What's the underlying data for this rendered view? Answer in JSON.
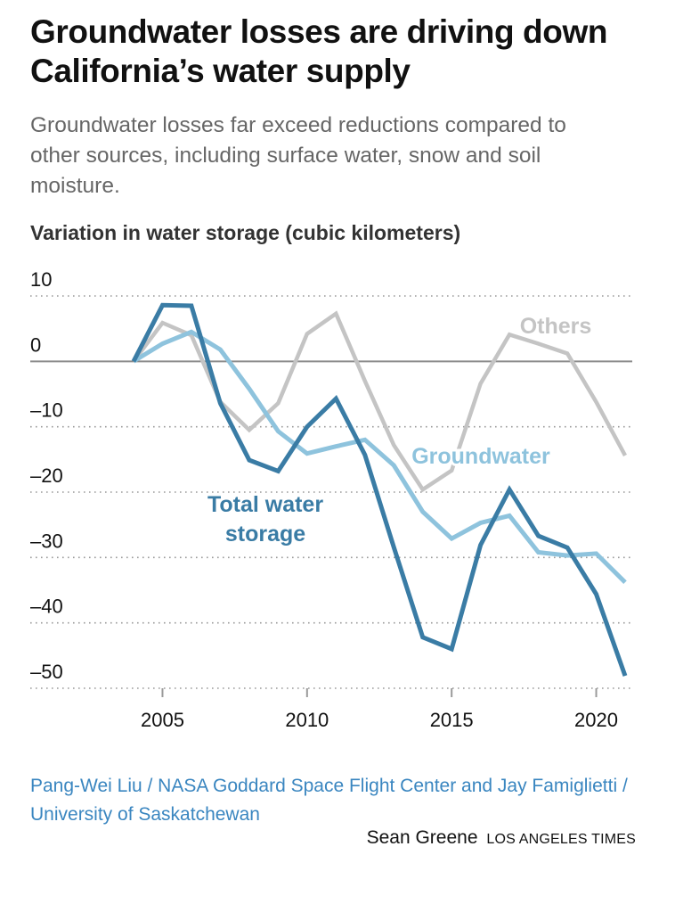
{
  "header": {
    "title": "Groundwater losses are driving down California’s water supply",
    "subtitle": "Groundwater losses far exceed reductions compared to other sources, including surface water, snow and soil moisture.",
    "axis_title": "Variation in water storage (cubic kilometers)"
  },
  "footer": {
    "source": "Pang-Wei Liu / NASA Goddard Space Flight Center and Jay Famiglietti / University of Saskatchewan",
    "author": "Sean Greene",
    "organization": "LOS ANGELES TIMES"
  },
  "colors": {
    "total": "#3a7ca5",
    "groundwater": "#8ec3dd",
    "others": "#c4c4c4",
    "zero_line": "#8c8c8c",
    "grid": "#9a9a9a"
  },
  "chart_data": {
    "type": "line",
    "title": "Variation in water storage (cubic kilometers)",
    "xlabel": "",
    "ylabel": "Variation in water storage (cubic kilometers)",
    "x": [
      2004,
      2005,
      2006,
      2007,
      2008,
      2009,
      2010,
      2011,
      2012,
      2013,
      2014,
      2015,
      2016,
      2017,
      2018,
      2019,
      2020,
      2021
    ],
    "xlim": [
      2004,
      2021
    ],
    "ylim": [
      -50,
      10
    ],
    "x_ticks": [
      2005,
      2010,
      2015,
      2020
    ],
    "x_tick_labels": [
      "2005",
      "2010",
      "2015",
      "2020"
    ],
    "y_ticks": [
      10,
      0,
      -10,
      -20,
      -30,
      -40,
      -50
    ],
    "y_tick_labels": [
      "10",
      "0",
      "–10",
      "–20",
      "–30",
      "–40",
      "–50"
    ],
    "grid": "horizontal dotted",
    "legend": "inline labels",
    "series": [
      {
        "name": "Others",
        "label": "Others",
        "key": "others",
        "values": [
          0,
          5.9,
          4.0,
          -6.2,
          -10.5,
          -6.4,
          4.2,
          7.3,
          -3.0,
          -12.8,
          -19.6,
          -16.7,
          -3.4,
          4.1,
          2.7,
          1.2,
          -6.2,
          -14.4
        ]
      },
      {
        "name": "Groundwater",
        "label": "Groundwater",
        "key": "groundwater",
        "values": [
          0,
          2.7,
          4.5,
          1.8,
          -4.2,
          -10.7,
          -14.1,
          -13.0,
          -12.0,
          -15.9,
          -23.0,
          -27.1,
          -24.7,
          -23.6,
          -29.2,
          -29.7,
          -29.4,
          -33.8
        ]
      },
      {
        "name": "Total water storage",
        "label": "Total water storage",
        "label_lines": [
          "Total water",
          "storage"
        ],
        "key": "total",
        "values": [
          0,
          8.6,
          8.5,
          -6.4,
          -15.1,
          -16.8,
          -10.0,
          -5.7,
          -14.3,
          -28.4,
          -42.2,
          -44.0,
          -28.1,
          -19.6,
          -26.7,
          -28.5,
          -35.6,
          -48.1
        ]
      }
    ]
  }
}
